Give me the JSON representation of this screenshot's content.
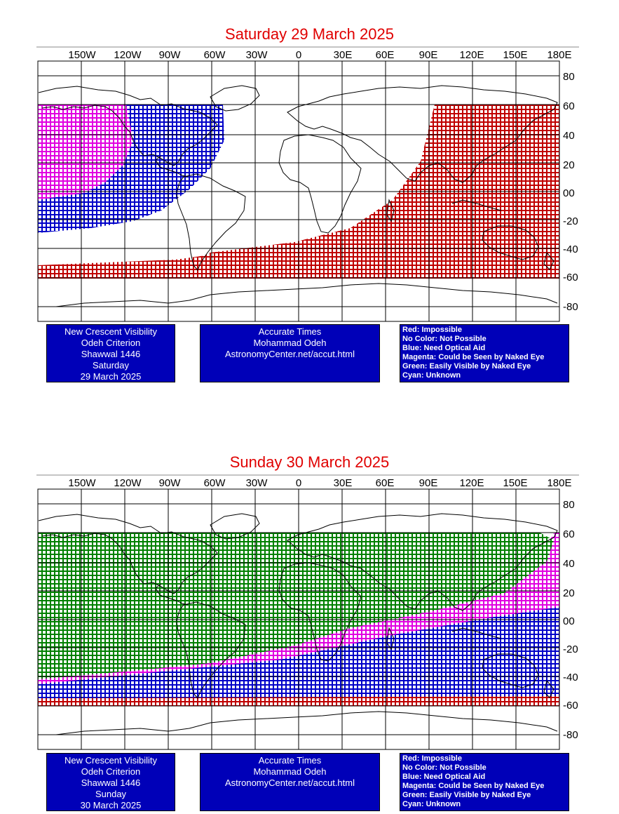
{
  "colors": {
    "impossible": "#c00000",
    "optical_aid": "#0000c8",
    "naked_eye_maybe": "#e000e0",
    "easily_visible": "#008000",
    "title": "#e00000",
    "box_bg": "#0000b8"
  },
  "longitude_labels": [
    "150W",
    "120W",
    "90W",
    "60W",
    "30W",
    "0",
    "30E",
    "60E",
    "90E",
    "120E",
    "150E",
    "180E"
  ],
  "latitude_labels": [
    "80",
    "60",
    "40",
    "20",
    "00",
    "-20",
    "-40",
    "-60",
    "-80"
  ],
  "maps": [
    {
      "title": "Saturday 29 March 2025",
      "criterion_box": [
        "New Crescent Visibility",
        "Odeh Criterion",
        "Shawwal 1446",
        "Saturday",
        "29 March 2025"
      ],
      "times_box": [
        "Accurate Times",
        "Mohammad Odeh",
        "AstronomyCenter.net/accut.html"
      ],
      "legend_box": [
        "Red: Impossible",
        "No Color: Not Possible",
        "Blue: Need Optical Aid",
        "Magenta: Could be Seen by Naked Eye",
        "Green: Easily Visible by Naked Eye",
        "Cyan: Unknown"
      ]
    },
    {
      "title": "Sunday 30 March 2025",
      "criterion_box": [
        "New Crescent Visibility",
        "Odeh Criterion",
        "Shawwal 1446",
        "Sunday",
        "30 March 2025"
      ],
      "times_box": [
        "Accurate Times",
        "Mohammad Odeh",
        "AstronomyCenter.net/accut.html"
      ],
      "legend_box": [
        "Red: Impossible",
        "No Color: Not Possible",
        "Blue: Need Optical Aid",
        "Magenta: Could be Seen by Naked Eye",
        "Green: Easily Visible by Naked Eye",
        "Cyan: Unknown"
      ]
    }
  ]
}
